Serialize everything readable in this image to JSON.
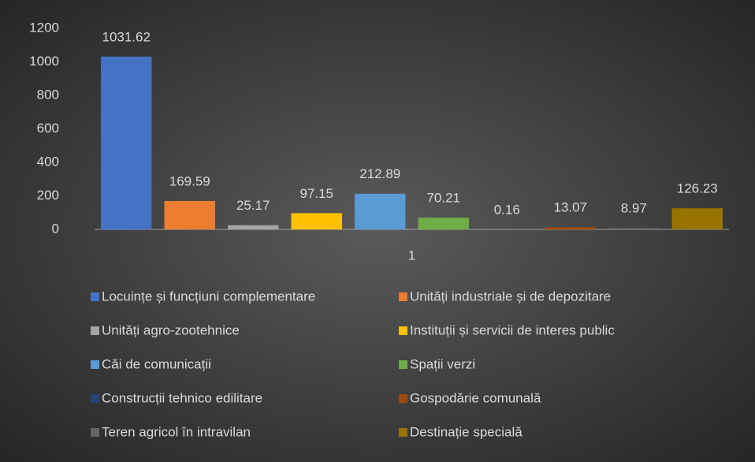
{
  "chart_data": {
    "type": "bar",
    "categories": [
      "1"
    ],
    "series": [
      {
        "name": "Locuințe și funcțiuni complementare",
        "color": "#4472c4",
        "values": [
          1031.62
        ]
      },
      {
        "name": "Unități industriale și de depozitare",
        "color": "#ed7d31",
        "values": [
          169.59
        ]
      },
      {
        "name": "Unități agro-zootehnice",
        "color": "#a5a5a5",
        "values": [
          25.17
        ]
      },
      {
        "name": "Instituții și servicii de interes public",
        "color": "#ffc000",
        "values": [
          97.15
        ]
      },
      {
        "name": "Căi de comunicații",
        "color": "#5b9bd5",
        "values": [
          212.89
        ]
      },
      {
        "name": "Spații verzi",
        "color": "#70ad47",
        "values": [
          70.21
        ]
      },
      {
        "name": "Construcții tehnico edilitare",
        "color": "#264478",
        "values": [
          0.16
        ]
      },
      {
        "name": "Gospodărie comunală",
        "color": "#9e480e",
        "values": [
          13.07
        ]
      },
      {
        "name": "Teren agricol în intravilan",
        "color": "#636363",
        "values": [
          8.97
        ]
      },
      {
        "name": "Destinație specială",
        "color": "#997300",
        "values": [
          126.23
        ]
      }
    ],
    "ylim": [
      0,
      1200
    ],
    "yticks": [
      0,
      200,
      400,
      600,
      800,
      1000,
      1200
    ],
    "grid": false,
    "legend": "bottom"
  }
}
